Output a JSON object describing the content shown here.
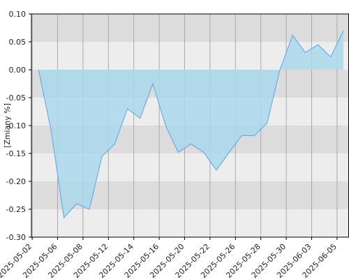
{
  "chart_data": {
    "type": "area",
    "y_label": "[Zmiany %]",
    "x": [
      "2025-05-02",
      "2025-05-05",
      "2025-05-06",
      "2025-05-07",
      "2025-05-08",
      "2025-05-09",
      "2025-05-12",
      "2025-05-13",
      "2025-05-14",
      "2025-05-15",
      "2025-05-16",
      "2025-05-19",
      "2025-05-20",
      "2025-05-21",
      "2025-05-22",
      "2025-05-23",
      "2025-05-26",
      "2025-05-27",
      "2025-05-28",
      "2025-05-29",
      "2025-05-30",
      "2025-06-02",
      "2025-06-03",
      "2025-06-04",
      "2025-06-05",
      "2025-06-06"
    ],
    "values": [
      null,
      0.0,
      -0.11,
      -0.265,
      -0.24,
      -0.25,
      -0.155,
      -0.133,
      -0.07,
      -0.087,
      -0.025,
      -0.1,
      -0.148,
      -0.133,
      -0.148,
      -0.18,
      -0.148,
      -0.118,
      -0.118,
      -0.095,
      0.0,
      0.062,
      0.031,
      0.045,
      0.023,
      0.07
    ],
    "color": "#5ba3e6",
    "fill": "#aad8ec",
    "xticks": [
      "2025-05-02",
      "2025-05-06",
      "2025-05-08",
      "2025-05-12",
      "2025-05-14",
      "2025-05-16",
      "2025-05-20",
      "2025-05-22",
      "2025-05-26",
      "2025-05-28",
      "2025-05-30",
      "2025-06-03",
      "2025-06-05"
    ],
    "ylim": [
      -0.3,
      0.1
    ],
    "yticks": [
      {
        "value": -0.3,
        "label": "-0.30"
      },
      {
        "value": -0.25,
        "label": "-0.25"
      },
      {
        "value": -0.2,
        "label": "-0.20"
      },
      {
        "value": -0.15,
        "label": "-0.15"
      },
      {
        "value": -0.1,
        "label": "-0.10"
      },
      {
        "value": -0.05,
        "label": "-0.05"
      },
      {
        "value": 0.0,
        "label": "0.00"
      },
      {
        "value": 0.05,
        "label": "0.05"
      },
      {
        "value": 0.1,
        "label": "0.10"
      }
    ],
    "grid": true
  }
}
